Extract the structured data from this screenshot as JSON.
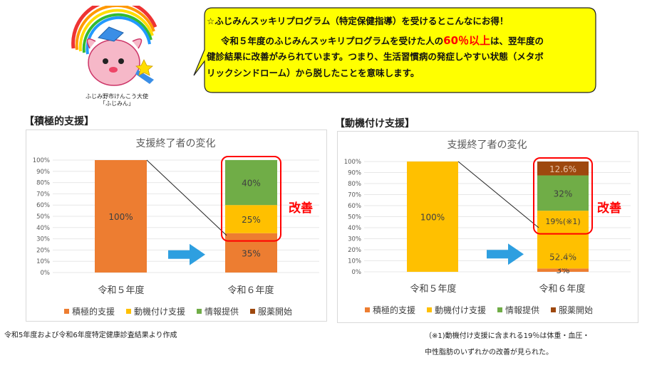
{
  "mascot": {
    "caption_line1": "ふじみ野市けんこう大使",
    "caption_line2": "「ふじみん」"
  },
  "bubble": {
    "line1": "☆ふじみんスッキリプログラム（特定保健指導）を受けるとこんなにお得！",
    "line2_pre": "令和５年度のふじみんスッキリプログラムを受けた人の",
    "line2_hl": "60％以上",
    "line2_post": "は、翌年度の",
    "line3": "健診結果に改善がみられています。つまり、生活習慣病の発症しやすい状態（メタボ",
    "line4": "リックシンドローム）から脱したことを意味します。"
  },
  "colors": {
    "orange": "#ed7d31",
    "yellow": "#ffc000",
    "green": "#70ad47",
    "brown": "#9e480e",
    "red": "#ff0000",
    "arrow": "#2e9fe0"
  },
  "chart_data": [
    {
      "section_title": "【積極的支援】",
      "type": "bar",
      "stacked": true,
      "title": "支援終了者の変化",
      "categories": [
        "令和５年度",
        "令和６年度"
      ],
      "ylim": [
        0,
        100
      ],
      "yticks": [
        "0%",
        "10%",
        "20%",
        "30%",
        "40%",
        "50%",
        "60%",
        "70%",
        "80%",
        "90%",
        "100%"
      ],
      "series": [
        {
          "name": "積極的支援",
          "color": "#ed7d31",
          "values": [
            100,
            35
          ],
          "labels": [
            "100%",
            "35%"
          ]
        },
        {
          "name": "動機付け支援",
          "color": "#ffc000",
          "values": [
            0,
            25
          ],
          "labels": [
            "",
            "25%"
          ]
        },
        {
          "name": "情報提供",
          "color": "#70ad47",
          "values": [
            0,
            40
          ],
          "labels": [
            "",
            "40%"
          ]
        },
        {
          "name": "服薬開始",
          "color": "#9e480e",
          "values": [
            0,
            0
          ],
          "labels": [
            "",
            ""
          ]
        }
      ],
      "annotation": "改善",
      "legend_position": "bottom",
      "grid": true
    },
    {
      "section_title": "【動機付け支援】",
      "type": "bar",
      "stacked": true,
      "title": "支援終了者の変化",
      "categories": [
        "令和５年度",
        "令和６年度"
      ],
      "ylim": [
        0,
        100
      ],
      "yticks": [
        "0%",
        "10%",
        "20%",
        "30%",
        "40%",
        "50%",
        "60%",
        "70%",
        "80%",
        "90%",
        "100%"
      ],
      "series": [
        {
          "name": "積極的支援",
          "color": "#ed7d31",
          "values": [
            0,
            3
          ],
          "labels": [
            "",
            "3%"
          ]
        },
        {
          "name": "動機付け支援",
          "color": "#ffc000",
          "values": [
            100,
            52.4
          ],
          "labels": [
            "100%",
            "52.4%"
          ]
        },
        {
          "name": "情報提供",
          "color": "#70ad47",
          "values": [
            0,
            32
          ],
          "labels": [
            "",
            "32%"
          ]
        },
        {
          "name": "服薬開始",
          "color": "#9e480e",
          "values": [
            0,
            12.6
          ],
          "labels": [
            "",
            "12.6%"
          ]
        }
      ],
      "inner_label": "19%(※1)",
      "inner_label_value": 19,
      "annotation": "改善",
      "legend_position": "bottom",
      "grid": true
    }
  ],
  "notes": {
    "source": "令和5年度および令和6年度特定健康診査結果より作成",
    "footnote1": "（※1)動機付け支援に含まれる19％は体重・血圧・",
    "footnote2": "中性脂肪のいずれかの改善が見られた。"
  }
}
